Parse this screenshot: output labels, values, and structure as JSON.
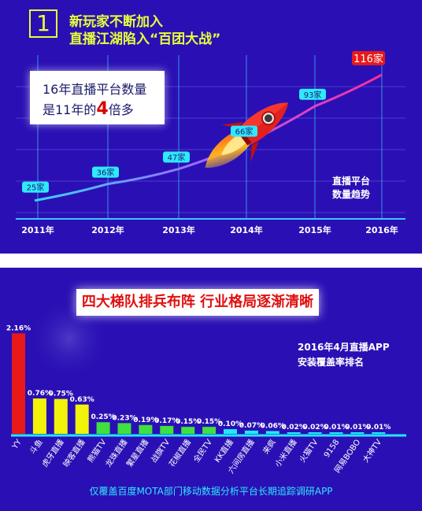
{
  "section1": {
    "badge": "1",
    "heading_line1": "新玩家不断加入",
    "heading_line2": "直播江湖陷入“百团大战”",
    "callout_part1": "16年直播平台数量",
    "callout_part2a": "是11年的",
    "callout_part2b": "4",
    "callout_part2c": "倍多",
    "trend_label_line1": "直播平台",
    "trend_label_line2": "数量趋势"
  },
  "section2": {
    "title": "四大梯队排兵布阵 行业格局逐渐清晰",
    "caption_line1": "2016年4月直播APP",
    "caption_line2": "安装覆盖率排名",
    "footer": "仅覆盖百度MOTA部门移动数据分析平台长期追踪调研APP"
  },
  "colors": {
    "background": "#2a10b4",
    "accent_yellow": "#e8ff3a",
    "tier1": "#e81919",
    "tier2": "#f2f20a",
    "tier3": "#3fe03f",
    "tier4": "#22e8ff",
    "line_start": "#36d6ff",
    "line_end": "#ff2aa0",
    "label_bg": "#2fe9ff"
  },
  "chart_data": [
    {
      "type": "line",
      "x": [
        "2011年",
        "2012年",
        "2013年",
        "2014年",
        "2015年",
        "2016年"
      ],
      "values": [
        25,
        36,
        47,
        66,
        93,
        116
      ],
      "point_labels": [
        "25家",
        "36家",
        "47家",
        "66家",
        "93家",
        "116家"
      ],
      "title": "",
      "xlabel": "",
      "ylabel": "",
      "grid": true,
      "decoration": "rocket-icon"
    },
    {
      "type": "bar",
      "categories": [
        "YY",
        "斗鱼",
        "虎牙直播",
        "映客直播",
        "熊猫TV",
        "龙珠直播",
        "繁星直播",
        "战旗TV",
        "花椒直播",
        "全民TV",
        "KK直播",
        "六间房直播",
        "来疯",
        "小米直播",
        "火猫TV",
        "9158",
        "网易BOBO",
        "大神TV"
      ],
      "values": [
        2.16,
        0.76,
        0.75,
        0.63,
        0.25,
        0.23,
        0.19,
        0.17,
        0.15,
        0.15,
        0.1,
        0.07,
        0.06,
        0.02,
        0.02,
        0.01,
        0.01,
        0.01
      ],
      "value_labels": [
        "2.16%",
        "0.76%",
        "0.75%",
        "0.63%",
        "0.25%",
        "0.23%",
        "0.19%",
        "0.17%",
        "0.15%",
        "0.15%",
        "0.10%",
        "0.07%",
        "0.06%",
        "0.02%",
        "0.02%",
        "0.01%",
        "0.01%",
        "0.01%"
      ],
      "tiers": [
        1,
        2,
        2,
        2,
        3,
        3,
        3,
        3,
        3,
        3,
        4,
        4,
        4,
        4,
        4,
        4,
        4,
        4
      ],
      "ylim": [
        0,
        2.2
      ],
      "title": "",
      "xlabel": "",
      "ylabel": ""
    }
  ]
}
